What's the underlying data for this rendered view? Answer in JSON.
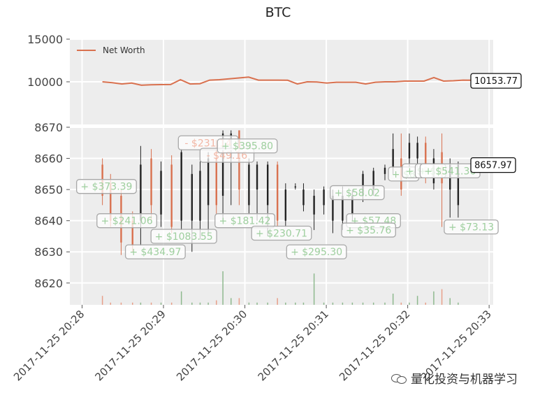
{
  "chart_data": [
    {
      "type": "line",
      "title": "BTC",
      "ylim": [
        5000,
        15000
      ],
      "yticks": [
        "15000",
        "10000"
      ],
      "legend": {
        "entries": [
          "Net Worth"
        ],
        "placement": "top-left"
      },
      "series": [
        {
          "name": "Net Worth",
          "color": "#d9714f",
          "values": [
            10000,
            9900,
            9750,
            9850,
            9600,
            9650,
            9670,
            9680,
            10250,
            9750,
            9780,
            10200,
            10250,
            10350,
            10450,
            10550,
            10200,
            10200,
            10200,
            10180,
            9750,
            10000,
            9980,
            9850,
            9950,
            9950,
            9950,
            9750,
            9950,
            10000,
            10000,
            10080,
            10080,
            10080,
            10500,
            10080,
            10120,
            10200,
            10180,
            10153.77
          ]
        }
      ],
      "last_value_label": "10153.77",
      "grid": true
    },
    {
      "type": "candlestick",
      "ylim": [
        8613,
        8670
      ],
      "yticks": [
        "8670",
        "8660",
        "8650",
        "8640",
        "8630",
        "8620"
      ],
      "xlim_minutes": [
        -0.15,
        5.05
      ],
      "xtick_labels": [
        "2017-11-25 20:28",
        "2017-11-25 20:29",
        "2017-11-25 20:30",
        "2017-11-25 20:31",
        "2017-11-25 20:32",
        "2017-11-25 20:33"
      ],
      "up_color": "#222222",
      "down_color": "#d9714f",
      "volume_up_color": "#8fb98f",
      "volume_down_color": "#e8a08a",
      "grid": true,
      "candles": [
        {
          "t": 0.25,
          "o": 8658,
          "c": 8648,
          "h": 8660,
          "l": 8645,
          "v": 4
        },
        {
          "t": 0.35,
          "o": 8652,
          "c": 8640,
          "h": 8655,
          "l": 8638,
          "v": 1
        },
        {
          "t": 0.48,
          "o": 8648,
          "c": 8633,
          "h": 8650,
          "l": 8629,
          "v": 1
        },
        {
          "t": 0.62,
          "o": 8640,
          "c": 8632,
          "h": 8643,
          "l": 8630,
          "v": 1
        },
        {
          "t": 0.72,
          "o": 8640,
          "c": 8658,
          "h": 8664,
          "l": 8632,
          "v": 1
        },
        {
          "t": 0.85,
          "o": 8660,
          "c": 8645,
          "h": 8663,
          "l": 8640,
          "v": 1
        },
        {
          "t": 0.97,
          "o": 8642,
          "c": 8656,
          "h": 8659,
          "l": 8638,
          "v": 1
        },
        {
          "t": 1.1,
          "o": 8658,
          "c": 8638,
          "h": 8661,
          "l": 8636,
          "v": 1
        },
        {
          "t": 1.22,
          "o": 8640,
          "c": 8662,
          "h": 8663,
          "l": 8637,
          "v": 6
        },
        {
          "t": 1.35,
          "o": 8640,
          "c": 8655,
          "h": 8658,
          "l": 8630,
          "v": 1
        },
        {
          "t": 1.45,
          "o": 8640,
          "c": 8656,
          "h": 8659,
          "l": 8634,
          "v": 1
        },
        {
          "t": 1.55,
          "o": 8645,
          "c": 8660,
          "h": 8662,
          "l": 8636,
          "v": 1
        },
        {
          "t": 1.65,
          "o": 8660,
          "c": 8645,
          "h": 8666,
          "l": 8642,
          "v": 2
        },
        {
          "t": 1.73,
          "o": 8648,
          "c": 8668,
          "h": 8669,
          "l": 8640,
          "v": 15
        },
        {
          "t": 1.83,
          "o": 8660,
          "c": 8668,
          "h": 8669,
          "l": 8645,
          "v": 3
        },
        {
          "t": 1.93,
          "o": 8669,
          "c": 8650,
          "h": 8669,
          "l": 8645,
          "v": 3
        },
        {
          "t": 2.05,
          "o": 8645,
          "c": 8658,
          "h": 8660,
          "l": 8642,
          "v": 1
        },
        {
          "t": 2.15,
          "o": 8650,
          "c": 8658,
          "h": 8659,
          "l": 8640,
          "v": 1
        },
        {
          "t": 2.28,
          "o": 8645,
          "c": 8658,
          "h": 8659,
          "l": 8635,
          "v": 1
        },
        {
          "t": 2.4,
          "o": 8658,
          "c": 8640,
          "h": 8659,
          "l": 8638,
          "v": 3
        },
        {
          "t": 2.5,
          "o": 8640,
          "c": 8650,
          "h": 8652,
          "l": 8638,
          "v": 1
        },
        {
          "t": 2.62,
          "o": 8651,
          "c": 8651,
          "h": 8652,
          "l": 8650,
          "v": 1
        },
        {
          "t": 2.72,
          "o": 8645,
          "c": 8650,
          "h": 8652,
          "l": 8643,
          "v": 1
        },
        {
          "t": 2.85,
          "o": 8642,
          "c": 8648,
          "h": 8650,
          "l": 8637,
          "v": 14
        },
        {
          "t": 2.97,
          "o": 8645,
          "c": 8650,
          "h": 8651,
          "l": 8642,
          "v": 1
        },
        {
          "t": 3.08,
          "o": 8640,
          "c": 8648,
          "h": 8650,
          "l": 8636,
          "v": 1
        },
        {
          "t": 3.2,
          "o": 8640,
          "c": 8648,
          "h": 8651,
          "l": 8637,
          "v": 1
        },
        {
          "t": 3.32,
          "o": 8642,
          "c": 8648,
          "h": 8650,
          "l": 8640,
          "v": 1
        },
        {
          "t": 3.45,
          "o": 8648,
          "c": 8655,
          "h": 8656,
          "l": 8646,
          "v": 1
        },
        {
          "t": 3.58,
          "o": 8650,
          "c": 8656,
          "h": 8657,
          "l": 8648,
          "v": 1
        },
        {
          "t": 3.72,
          "o": 8655,
          "c": 8657,
          "h": 8658,
          "l": 8653,
          "v": 1
        },
        {
          "t": 3.82,
          "o": 8657,
          "c": 8663,
          "h": 8668,
          "l": 8655,
          "v": 5
        },
        {
          "t": 3.92,
          "o": 8660,
          "c": 8650,
          "h": 8668,
          "l": 8648,
          "v": 1
        },
        {
          "t": 4.02,
          "o": 8660,
          "c": 8665,
          "h": 8668,
          "l": 8656,
          "v": 1
        },
        {
          "t": 4.12,
          "o": 8660,
          "c": 8665,
          "h": 8667,
          "l": 8655,
          "v": 4
        },
        {
          "t": 4.22,
          "o": 8665,
          "c": 8655,
          "h": 8667,
          "l": 8652,
          "v": 1
        },
        {
          "t": 4.32,
          "o": 8652,
          "c": 8660,
          "h": 8663,
          "l": 8650,
          "v": 6
        },
        {
          "t": 4.42,
          "o": 8662,
          "c": 8652,
          "h": 8668,
          "l": 8638,
          "v": 7
        },
        {
          "t": 4.52,
          "o": 8650,
          "c": 8658,
          "h": 8660,
          "l": 8641,
          "v": 3
        },
        {
          "t": 4.62,
          "o": 8645,
          "c": 8658,
          "h": 8659,
          "l": 8641,
          "v": 1
        }
      ],
      "trade_labels": [
        {
          "text": "+ $373.39",
          "t": 0.3,
          "y": 8651,
          "kind": "buy"
        },
        {
          "text": "+ $241.06",
          "t": 0.55,
          "y": 8640,
          "kind": "buy"
        },
        {
          "text": "+ $434.97",
          "t": 0.9,
          "y": 8630,
          "kind": "buy"
        },
        {
          "text": "+ $1083.55",
          "t": 1.25,
          "y": 8635,
          "kind": "buy"
        },
        {
          "text": "- $231.14",
          "t": 1.55,
          "y": 8665,
          "kind": "sell"
        },
        {
          "text": "- $49.16",
          "t": 1.78,
          "y": 8661,
          "kind": "sell"
        },
        {
          "text": "+ $395.80",
          "t": 2.03,
          "y": 8664,
          "kind": "buy"
        },
        {
          "text": "+ $181.42",
          "t": 2.0,
          "y": 8640,
          "kind": "buy"
        },
        {
          "text": "+ $230.71",
          "t": 2.45,
          "y": 8636,
          "kind": "buy"
        },
        {
          "text": "+ $295.30",
          "t": 2.88,
          "y": 8630,
          "kind": "buy"
        },
        {
          "text": "+ $58.02",
          "t": 3.38,
          "y": 8649,
          "kind": "buy"
        },
        {
          "text": "+ $57.48",
          "t": 3.58,
          "y": 8640,
          "kind": "buy"
        },
        {
          "text": "+ $35.76",
          "t": 3.52,
          "y": 8637,
          "kind": "buy"
        },
        {
          "text": "+ $8",
          "t": 3.95,
          "y": 8655,
          "kind": "buy"
        },
        {
          "text": "+ $5",
          "t": 4.12,
          "y": 8656,
          "kind": "buy"
        },
        {
          "text": "+ $2",
          "t": 4.28,
          "y": 8656,
          "kind": "buy"
        },
        {
          "text": "+ $541.36",
          "t": 4.52,
          "y": 8656,
          "kind": "buy"
        },
        {
          "text": "+ $73.13",
          "t": 4.78,
          "y": 8638,
          "kind": "buy"
        }
      ],
      "last_value_label": "8657.97"
    }
  ],
  "watermark": "量化投资与机器学习"
}
